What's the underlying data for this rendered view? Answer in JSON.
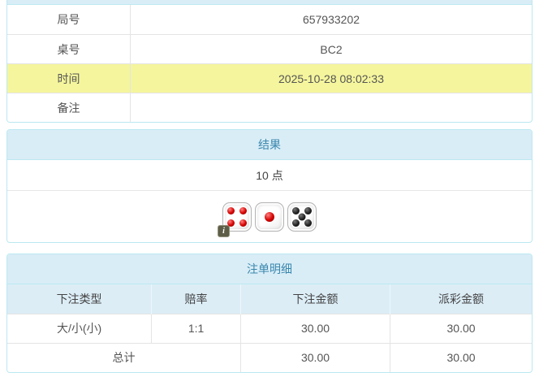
{
  "colors": {
    "accent_blue": "#3a87ad",
    "panel_border": "#bce8f1",
    "heading_bg": "#d9edf7",
    "highlight_yellow": "#f5f59d",
    "odds_red": "#e4393c"
  },
  "info_panel": {
    "rows": [
      {
        "label": "局号",
        "value": "657933202"
      },
      {
        "label": "桌号",
        "value": "BC2"
      },
      {
        "label": "时间",
        "value": "2025-10-28 08:02:33"
      },
      {
        "label": "备注",
        "value": ""
      }
    ]
  },
  "result_panel": {
    "title": "结果",
    "points": "10 点",
    "dice": [
      {
        "value": "4",
        "color": "red"
      },
      {
        "value": "1",
        "color": "red"
      },
      {
        "value": "5",
        "color": "black"
      }
    ],
    "info_icon": "i"
  },
  "bets_panel": {
    "title": "注单明细",
    "columns": [
      "下注类型",
      "赔率",
      "下注金额",
      "派彩金额"
    ],
    "rows": [
      {
        "bet_type": "大/小(小)",
        "odds": "1:1",
        "bet_amount": "30.00",
        "payout": "30.00"
      }
    ],
    "total": {
      "label": "总计",
      "bet_amount": "30.00",
      "payout": "30.00"
    }
  }
}
